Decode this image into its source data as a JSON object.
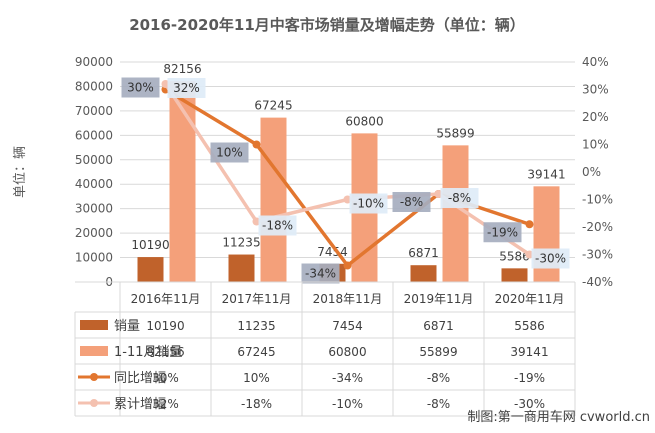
{
  "chart_data": {
    "type": "bar",
    "title": "2016-2020年11月中客市场销量及增幅走势（单位：辆）",
    "ylabel": "单位：辆",
    "categories": [
      "2016年11月",
      "2017年11月",
      "2018年11月",
      "2019年11月",
      "2020年11月"
    ],
    "ylim": [
      0,
      90000
    ],
    "y_ticks": [
      "0",
      "10000",
      "20000",
      "30000",
      "40000",
      "50000",
      "60000",
      "70000",
      "80000",
      "90000"
    ],
    "y2lim": [
      -40,
      40
    ],
    "y2_ticks": [
      "-40%",
      "-30%",
      "-20%",
      "-10%",
      "0%",
      "10%",
      "20%",
      "30%",
      "40%"
    ],
    "grid": true,
    "legend": "bottom-table",
    "series": [
      {
        "name": "销量",
        "type": "bar",
        "axis": "left",
        "color": "#C0622B",
        "values": [
          10190,
          11235,
          7454,
          6871,
          5586
        ],
        "labels": [
          "10190",
          "11235",
          "7454",
          "6871",
          "5586"
        ],
        "table": [
          "10190",
          "11235",
          "7454",
          "6871",
          "5586"
        ]
      },
      {
        "name": "1-11月销量",
        "type": "bar",
        "axis": "left",
        "color": "#F4A07A",
        "values": [
          82156,
          67245,
          60800,
          55899,
          39141
        ],
        "labels": [
          "82156",
          "67245",
          "60800",
          "55899",
          "39141"
        ],
        "table": [
          "82156",
          "67245",
          "60800",
          "55899",
          "39141"
        ]
      },
      {
        "name": "同比增幅",
        "type": "line",
        "axis": "right",
        "color": "#E2762F",
        "values": [
          30,
          10,
          -34,
          -8,
          -19
        ],
        "labels": [
          "30%",
          "10%",
          "-34%",
          "-8%",
          "-19%"
        ],
        "table": [
          "30%",
          "10%",
          "-34%",
          "-8%",
          "-19%"
        ]
      },
      {
        "name": "累计增幅",
        "type": "line",
        "axis": "right",
        "color": "#F4C1B0",
        "values": [
          32,
          -18,
          -10,
          -8,
          -30
        ],
        "labels": [
          "32%",
          "-18%",
          "-10%",
          "-8%",
          "-30%"
        ],
        "table": [
          "32%",
          "-18%",
          "-10%",
          "-8%",
          "-30%"
        ]
      }
    ],
    "watermark": "制图:第一商用车网 cvworld.cn"
  }
}
